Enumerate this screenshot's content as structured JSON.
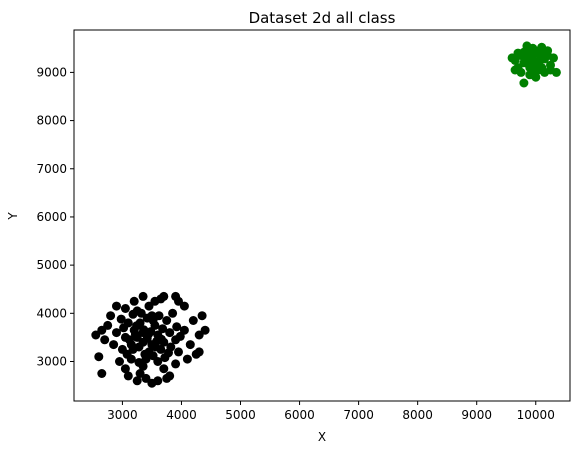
{
  "chart_data": {
    "type": "scatter",
    "title": "Dataset 2d all class",
    "xlabel": "X",
    "ylabel": "Y",
    "xlim": [
      2180,
      10580
    ],
    "ylim": [
      2180,
      9880
    ],
    "xticks": [
      3000,
      4000,
      5000,
      6000,
      7000,
      8000,
      9000,
      10000
    ],
    "yticks": [
      3000,
      4000,
      5000,
      6000,
      7000,
      8000,
      9000
    ],
    "grid": false,
    "legend": "none",
    "series": [
      {
        "color": "#000000",
        "points": [
          [
            3420,
            3480
          ],
          [
            3350,
            3600
          ],
          [
            3500,
            3350
          ],
          [
            3250,
            3500
          ],
          [
            3600,
            3550
          ],
          [
            3450,
            3200
          ],
          [
            3300,
            3800
          ],
          [
            3700,
            3400
          ],
          [
            3150,
            3350
          ],
          [
            3550,
            3750
          ],
          [
            3400,
            3050
          ],
          [
            3800,
            3600
          ],
          [
            3200,
            3650
          ],
          [
            3650,
            3250
          ],
          [
            3050,
            3500
          ],
          [
            3500,
            3950
          ],
          [
            3900,
            3450
          ],
          [
            3350,
            2900
          ],
          [
            3100,
            3800
          ],
          [
            3750,
            3850
          ],
          [
            3000,
            3250
          ],
          [
            3600,
            3000
          ],
          [
            3250,
            4050
          ],
          [
            3950,
            3200
          ],
          [
            2900,
            3600
          ],
          [
            3450,
            4150
          ],
          [
            3850,
            4000
          ],
          [
            3150,
            3050
          ],
          [
            3700,
            2850
          ],
          [
            2850,
            3350
          ],
          [
            4050,
            3650
          ],
          [
            3300,
            2750
          ],
          [
            3550,
            4250
          ],
          [
            2750,
            3750
          ],
          [
            4150,
            3350
          ],
          [
            3050,
            4100
          ],
          [
            3900,
            2950
          ],
          [
            2950,
            3000
          ],
          [
            4200,
            3850
          ],
          [
            3400,
            2650
          ],
          [
            2800,
            3950
          ],
          [
            3650,
            4300
          ],
          [
            4100,
            3050
          ],
          [
            3200,
            4250
          ],
          [
            4300,
            3550
          ],
          [
            2700,
            3450
          ],
          [
            3350,
            4350
          ],
          [
            3800,
            2700
          ],
          [
            3050,
            2850
          ],
          [
            4050,
            4150
          ],
          [
            2650,
            3650
          ],
          [
            4250,
            3150
          ],
          [
            3250,
            2600
          ],
          [
            3700,
            4350
          ],
          [
            2900,
            4150
          ],
          [
            4400,
            3650
          ],
          [
            3500,
            2550
          ],
          [
            2550,
            3550
          ],
          [
            3950,
            4250
          ],
          [
            2600,
            3100
          ],
          [
            4300,
            3200
          ],
          [
            3100,
            2700
          ],
          [
            3750,
            2650
          ],
          [
            4350,
            3950
          ],
          [
            2650,
            2750
          ],
          [
            3900,
            4350
          ],
          [
            3600,
            2600
          ],
          [
            3350,
            3400
          ],
          [
            3480,
            3620
          ],
          [
            3280,
            3300
          ],
          [
            3580,
            3420
          ],
          [
            3220,
            3560
          ],
          [
            3680,
            3680
          ],
          [
            3380,
            3150
          ],
          [
            3120,
            3450
          ],
          [
            3520,
            3850
          ],
          [
            3820,
            3300
          ],
          [
            3020,
            3700
          ],
          [
            3420,
            3900
          ],
          [
            3720,
            3080
          ],
          [
            3180,
            3980
          ],
          [
            3920,
            3720
          ],
          [
            3280,
            2980
          ],
          [
            3080,
            3150
          ],
          [
            3620,
            3950
          ],
          [
            3980,
            3520
          ],
          [
            2980,
            3880
          ],
          [
            3520,
            3120
          ],
          [
            3320,
            4000
          ],
          [
            3780,
            3180
          ],
          [
            3180,
            3250
          ],
          [
            3560,
            3300
          ],
          [
            3440,
            3560
          ],
          [
            3240,
            3740
          ],
          [
            3660,
            3460
          ],
          [
            3360,
            3660
          ]
        ]
      },
      {
        "color": "#008000",
        "points": [
          [
            9950,
            9250
          ],
          [
            10050,
            9200
          ],
          [
            9850,
            9300
          ],
          [
            10150,
            9280
          ],
          [
            9900,
            9100
          ],
          [
            10000,
            9400
          ],
          [
            10100,
            9100
          ],
          [
            9800,
            9200
          ],
          [
            10200,
            9350
          ],
          [
            9750,
            9350
          ],
          [
            10050,
            9450
          ],
          [
            9950,
            9050
          ],
          [
            10250,
            9150
          ],
          [
            9700,
            9100
          ],
          [
            10150,
            9000
          ],
          [
            9850,
            9480
          ],
          [
            10300,
            9300
          ],
          [
            9650,
            9250
          ],
          [
            9900,
            8950
          ],
          [
            10100,
            9520
          ],
          [
            9600,
            9300
          ],
          [
            10350,
            9000
          ],
          [
            9800,
            8780
          ],
          [
            10000,
            8900
          ],
          [
            10200,
            9450
          ],
          [
            9700,
            9400
          ],
          [
            9850,
            9550
          ],
          [
            9950,
            9500
          ],
          [
            10250,
            9050
          ],
          [
            9750,
            9000
          ],
          [
            10050,
            9050
          ],
          [
            9650,
            9050
          ],
          [
            9800,
            9420
          ],
          [
            10120,
            9380
          ],
          [
            9900,
            9350
          ],
          [
            10000,
            9150
          ],
          [
            9870,
            9180
          ],
          [
            10080,
            9300
          ]
        ]
      }
    ]
  }
}
